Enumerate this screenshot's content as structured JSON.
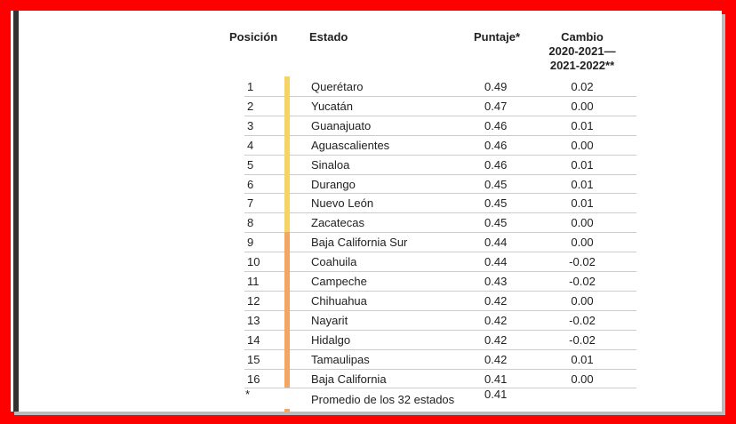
{
  "table": {
    "header": [
      "Posición",
      "Estado",
      "Puntaje*",
      "Cambio\n2020-2021—\n2021-2022**"
    ],
    "rows": [
      {
        "cells": [
          "1",
          "Querétaro",
          "0.49",
          "0.02"
        ],
        "color": "#f6d365"
      },
      {
        "cells": [
          "2",
          "Yucatán",
          "0.47",
          "0.00"
        ],
        "color": "#f6d365"
      },
      {
        "cells": [
          "3",
          "Guanajuato",
          "0.46",
          "0.01"
        ],
        "color": "#f6d365"
      },
      {
        "cells": [
          "4",
          "Aguascalientes",
          "0.46",
          "0.00"
        ],
        "color": "#f6d365"
      },
      {
        "cells": [
          "5",
          "Sinaloa",
          "0.46",
          "0.01"
        ],
        "color": "#f6d365"
      },
      {
        "cells": [
          "6",
          "Durango",
          "0.45",
          "0.01"
        ],
        "color": "#f6d365"
      },
      {
        "cells": [
          "7",
          "Nuevo León",
          "0.45",
          "0.01"
        ],
        "color": "#f6d365"
      },
      {
        "cells": [
          "8",
          "Zacatecas",
          "0.45",
          "0.00"
        ],
        "color": "#f6d365"
      },
      {
        "cells": [
          "9",
          "Baja California Sur",
          "0.44",
          "0.00"
        ],
        "color": "#f4a562"
      },
      {
        "cells": [
          "10",
          "Coahuila",
          "0.44",
          "-0.02"
        ],
        "color": "#f4a562"
      },
      {
        "cells": [
          "11",
          "Campeche",
          "0.43",
          "-0.02"
        ],
        "color": "#f4a562"
      },
      {
        "cells": [
          "12",
          "Chihuahua",
          "0.42",
          "0.00"
        ],
        "color": "#f4a562"
      },
      {
        "cells": [
          "13",
          "Nayarit",
          "0.42",
          "-0.02"
        ],
        "color": "#f4a562"
      },
      {
        "cells": [
          "14",
          "Hidalgo",
          "0.42",
          "-0.02"
        ],
        "color": "#f4a562"
      },
      {
        "cells": [
          "15",
          "Tamaulipas",
          "0.42",
          "0.01"
        ],
        "color": "#f4a562"
      },
      {
        "cells": [
          "16",
          "Baja California",
          "0.41",
          "0.00"
        ],
        "color": "#f4a562"
      }
    ],
    "footer": [
      "*",
      "Promedio de los 32 estados",
      "0.41"
    ]
  }
}
